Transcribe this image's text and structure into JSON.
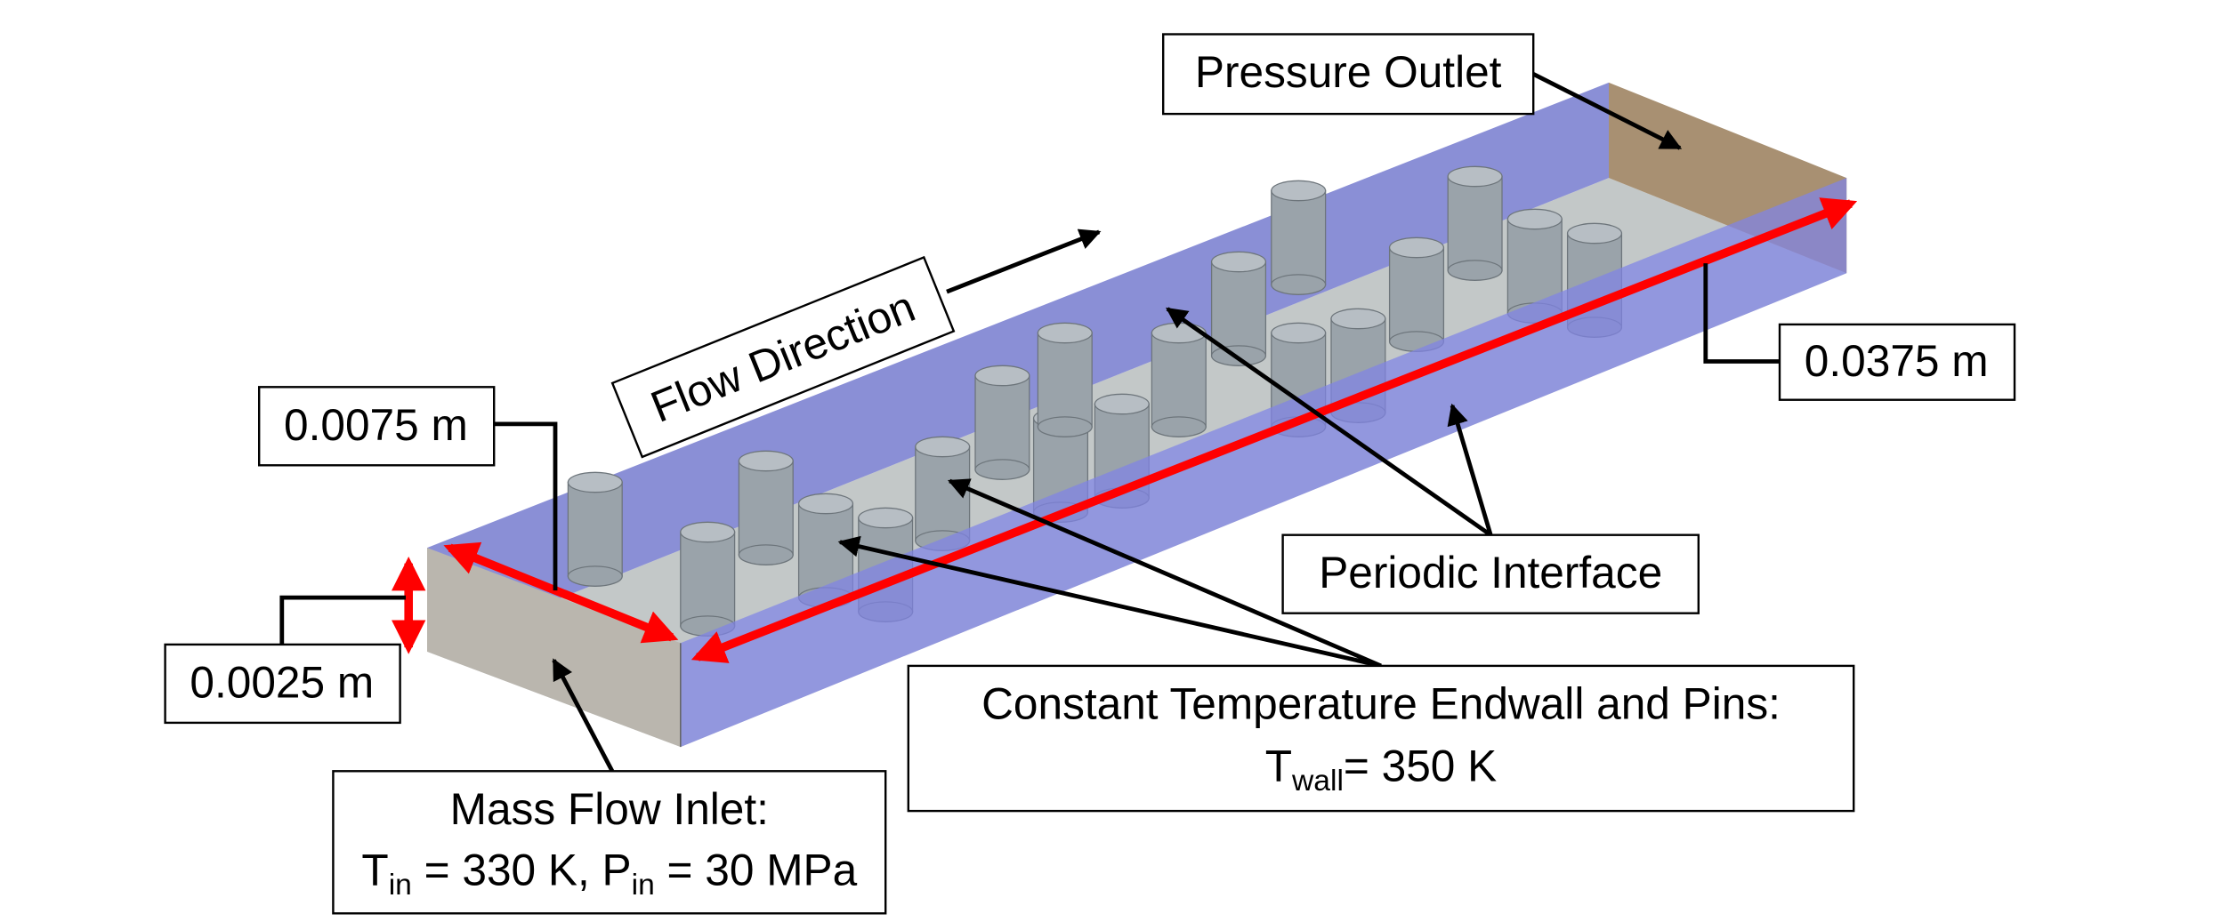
{
  "labels": {
    "pressure_outlet": "Pressure Outlet",
    "flow_direction": "Flow Direction",
    "length": "0.0375 m",
    "width": "0.0075 m",
    "height": "0.0025 m",
    "periodic_interface": "Periodic Interface",
    "endwall": {
      "title": "Constant Temperature Endwall and Pins:",
      "parts": [
        "T",
        "wall",
        "= 350 K"
      ]
    },
    "inlet": {
      "title": "Mass Flow Inlet:",
      "parts": [
        "T",
        "in",
        " = 330 K, P",
        "in",
        " = 30 MPa"
      ]
    }
  }
}
